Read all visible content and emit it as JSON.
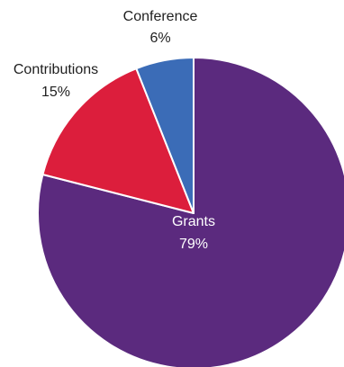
{
  "chart_data": {
    "type": "pie",
    "slices": [
      {
        "label": "Grants",
        "value": 79,
        "value_text": "79%",
        "color": "#5B2A7E"
      },
      {
        "label": "Contributions",
        "value": 15,
        "value_text": "15%",
        "color": "#DC1E3C"
      },
      {
        "label": "Conference",
        "value": 6,
        "value_text": "6%",
        "color": "#3B6CB7"
      }
    ],
    "start_angle": "12 o'clock",
    "direction": "clockwise",
    "legend": "none"
  }
}
